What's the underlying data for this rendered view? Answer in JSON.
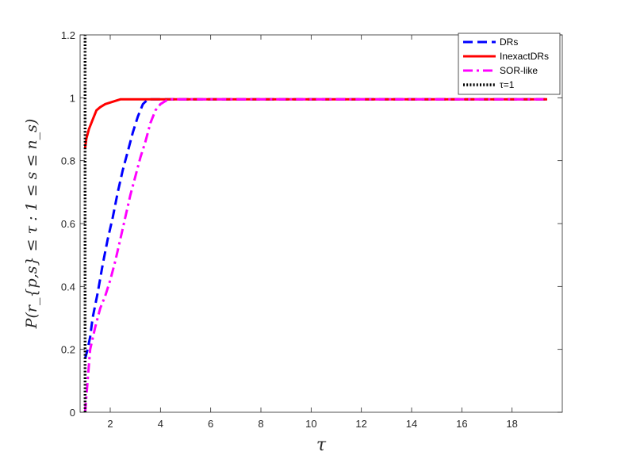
{
  "chart_data": {
    "type": "line",
    "title": "",
    "xlabel": "τ",
    "ylabel": "P(r_{p,s} ≤ τ : 1 ≤ s ≤ n_s)",
    "xlim": [
      0.8,
      20
    ],
    "ylim": [
      0,
      1.2
    ],
    "x_ticks": [
      2,
      4,
      6,
      8,
      10,
      12,
      14,
      16,
      18
    ],
    "y_ticks": [
      0,
      0.2,
      0.4,
      0.6,
      0.8,
      1,
      1.2
    ],
    "x_tick_labels": [
      "2",
      "4",
      "6",
      "8",
      "10",
      "12",
      "14",
      "16",
      "18"
    ],
    "y_tick_labels": [
      "0",
      "0.2",
      "0.4",
      "0.6",
      "0.8",
      "1",
      "1.2"
    ],
    "grid": false,
    "legend_position": "top-right",
    "series": [
      {
        "name": "DRs",
        "color": "#0000ff",
        "style": "dashed",
        "x": [
          1.0,
          1.1,
          1.2,
          1.3,
          1.5,
          1.7,
          1.9,
          2.1,
          2.3,
          2.5,
          2.7,
          2.9,
          3.1,
          3.3,
          3.5,
          3.7,
          4.0,
          19.4
        ],
        "y": [
          0.17,
          0.2,
          0.24,
          0.3,
          0.38,
          0.47,
          0.55,
          0.62,
          0.7,
          0.77,
          0.83,
          0.89,
          0.94,
          0.98,
          0.995,
          0.995,
          0.995,
          0.995
        ]
      },
      {
        "name": "InexactDRs",
        "color": "#ff0000",
        "style": "solid",
        "x": [
          1.0,
          1.05,
          1.15,
          1.3,
          1.45,
          1.6,
          1.8,
          2.0,
          2.2,
          2.4,
          2.6,
          3.0,
          19.4
        ],
        "y": [
          0.84,
          0.87,
          0.9,
          0.93,
          0.96,
          0.97,
          0.98,
          0.985,
          0.99,
          0.995,
          0.995,
          0.995,
          0.995
        ]
      },
      {
        "name": "SOR-like",
        "color": "#ff00ff",
        "style": "dashdot",
        "x": [
          1.0,
          1.1,
          1.2,
          1.4,
          1.6,
          1.8,
          2.0,
          2.2,
          2.4,
          2.6,
          2.8,
          3.0,
          3.2,
          3.4,
          3.6,
          3.8,
          4.0,
          4.2,
          4.4,
          19.4
        ],
        "y": [
          0.0,
          0.1,
          0.2,
          0.27,
          0.33,
          0.37,
          0.42,
          0.48,
          0.55,
          0.62,
          0.69,
          0.75,
          0.81,
          0.86,
          0.92,
          0.96,
          0.98,
          0.99,
          0.995,
          0.995
        ]
      },
      {
        "name": "τ=1",
        "color": "#000000",
        "style": "dotted",
        "x": [
          1.0,
          1.0
        ],
        "y": [
          0.0,
          1.2
        ]
      }
    ]
  }
}
